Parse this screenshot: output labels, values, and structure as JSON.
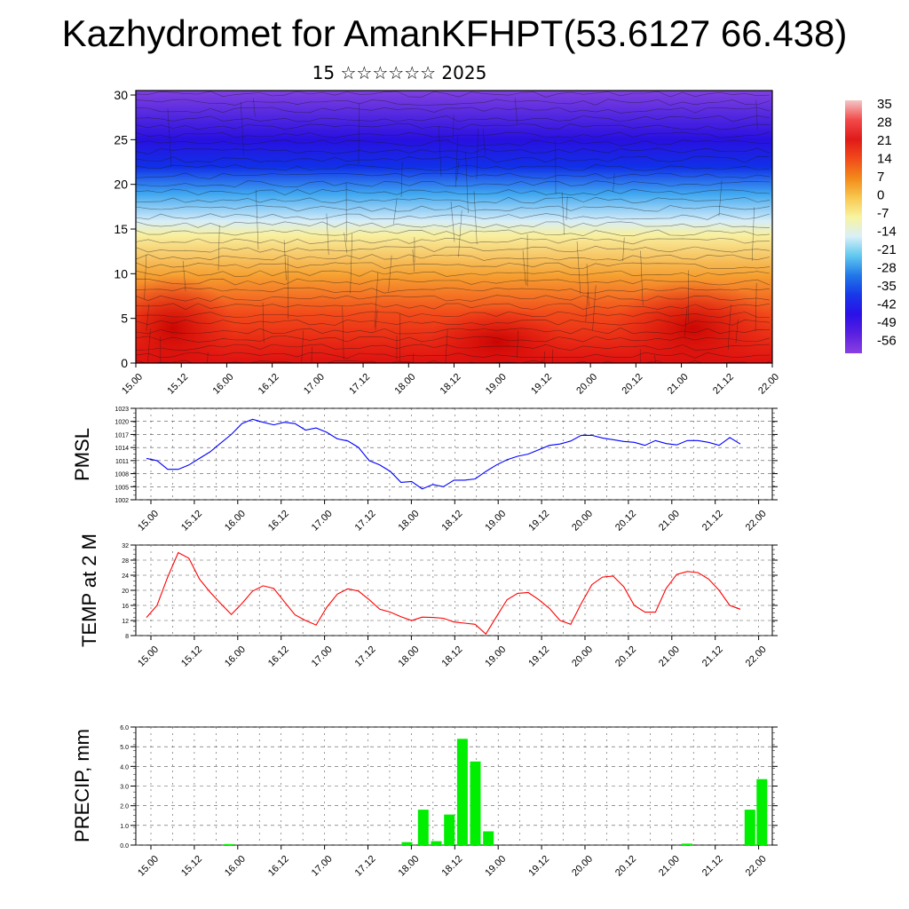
{
  "title": "Kazhydromet for AmanKFHPT(53.6127 66.438)",
  "subtitle": "15 ☆☆☆☆☆☆ 2025",
  "time_ticks": [
    "15.00",
    "15.12",
    "16.00",
    "16.12",
    "17.00",
    "17.12",
    "18.00",
    "18.12",
    "19.00",
    "19.12",
    "20.00",
    "20.12",
    "21.00",
    "21.12",
    "22.00"
  ],
  "colorbar": {
    "labels": [
      "35",
      "28",
      "21",
      "14",
      "7",
      "0",
      "-7",
      "-14",
      "-21",
      "-28",
      "-35",
      "-42",
      "-49",
      "-56"
    ],
    "stops": [
      "#f4c6c6",
      "#f24a4a",
      "#e01a1a",
      "#f24a1a",
      "#f28a1a",
      "#f8c850",
      "#f8f4a0",
      "#d8f0f8",
      "#60c8f0",
      "#2078e8",
      "#1838e8",
      "#2a10e8",
      "#5a20e0",
      "#8a40e0"
    ]
  },
  "chart_data": [
    {
      "type": "heatmap",
      "title": "",
      "xlabel": "",
      "ylabel": "",
      "x_ticks": [
        "15.00",
        "15.12",
        "16.00",
        "16.12",
        "17.00",
        "17.12",
        "18.00",
        "18.12",
        "19.00",
        "19.12",
        "20.00",
        "20.12",
        "21.00",
        "21.12",
        "22.00"
      ],
      "y_ticks": [
        0,
        5,
        10,
        15,
        20,
        25,
        30
      ],
      "ylim": [
        0,
        30.5
      ],
      "description_bands_y_km": {
        "warm_surface": [
          0,
          10
        ],
        "freezing_level": 15.5,
        "cold_tropopause": [
          22,
          27
        ]
      },
      "color_range": [
        -56,
        35
      ]
    },
    {
      "type": "line",
      "ylabel": "PMSL",
      "ylim": [
        1002,
        1023
      ],
      "y_ticks": [
        1002,
        1005,
        1008,
        1011,
        1014,
        1017,
        1020,
        1023
      ],
      "color": "#0000ff",
      "values": [
        1011.5,
        1011,
        1009,
        1009,
        1010,
        1011.5,
        1013,
        1015,
        1017,
        1019.5,
        1020.5,
        1019.8,
        1019.2,
        1019.8,
        1019.5,
        1018,
        1018.5,
        1017.5,
        1016,
        1015.5,
        1014,
        1011,
        1010,
        1008.5,
        1006,
        1006.2,
        1004.5,
        1005.5,
        1005,
        1006.5,
        1006.5,
        1006.8,
        1008.5,
        1010,
        1011.2,
        1012,
        1012.5,
        1013.5,
        1014.5,
        1014.8,
        1015.5,
        1016.8,
        1016.8,
        1016.2,
        1015.8,
        1015.4,
        1015.2,
        1014.5,
        1015.6,
        1014.9,
        1014.6,
        1015.6,
        1015.6,
        1015.2,
        1014.5,
        1016.3,
        1014.8
      ]
    },
    {
      "type": "line",
      "ylabel": "TEMP at 2 M",
      "ylim": [
        8,
        32
      ],
      "y_ticks": [
        8,
        12,
        16,
        20,
        24,
        28,
        32
      ],
      "color": "#ff0000",
      "values": [
        12.8,
        16,
        23.5,
        30,
        28.5,
        23,
        19.5,
        16.5,
        13.6,
        16.5,
        19.8,
        21.2,
        20.5,
        17,
        13.5,
        12,
        10.8,
        15.5,
        19,
        20.4,
        19.8,
        17.5,
        15,
        14.2,
        13,
        12,
        12.9,
        12.8,
        12.6,
        11.6,
        11.3,
        11,
        8.4,
        13,
        17.5,
        19.2,
        19.4,
        17.5,
        15.2,
        12,
        11,
        16.5,
        21.5,
        23.5,
        23.8,
        21,
        16,
        14.2,
        14.2,
        20.5,
        24.2,
        25,
        24.7,
        23,
        20,
        16,
        15
      ]
    },
    {
      "type": "bar",
      "ylabel": "PRECIP, mm",
      "ylim": [
        0,
        6
      ],
      "y_ticks": [
        "0.0",
        "1.0",
        "2.0",
        "3.0",
        "4.0",
        "5.0",
        "6.0"
      ],
      "color": "#00ee00",
      "bars": [
        {
          "t": 7.2,
          "value": 0.05
        },
        {
          "t": 23.6,
          "value": 0.15
        },
        {
          "t": 25.1,
          "value": 1.8
        },
        {
          "t": 26.3,
          "value": 0.2
        },
        {
          "t": 27.5,
          "value": 1.55
        },
        {
          "t": 28.7,
          "value": 5.4
        },
        {
          "t": 29.9,
          "value": 4.25
        },
        {
          "t": 31.1,
          "value": 0.7
        },
        {
          "t": 49.4,
          "value": 0.07
        },
        {
          "t": 55.2,
          "value": 1.8
        },
        {
          "t": 56.3,
          "value": 3.35
        }
      ]
    }
  ]
}
